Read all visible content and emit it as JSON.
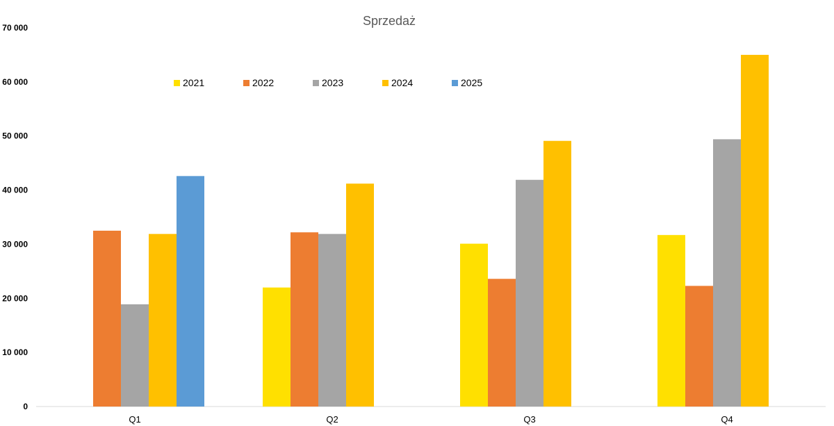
{
  "chart_data": {
    "type": "bar",
    "title": "Sprzedaż",
    "categories": [
      "Q1",
      "Q2",
      "Q3",
      "Q4"
    ],
    "series": [
      {
        "name": "2021",
        "color": "#FFE000",
        "values": [
          null,
          22000,
          30100,
          31700
        ]
      },
      {
        "name": "2022",
        "color": "#ED7D31",
        "values": [
          32500,
          32200,
          23600,
          22300
        ]
      },
      {
        "name": "2023",
        "color": "#A5A5A5",
        "values": [
          18900,
          31900,
          41900,
          49400
        ]
      },
      {
        "name": "2024",
        "color": "#FFC000",
        "values": [
          31900,
          41200,
          49100,
          65000
        ]
      },
      {
        "name": "2025",
        "color": "#5B9BD5",
        "values": [
          42600,
          null,
          null,
          null
        ]
      }
    ],
    "yticks": [
      "0",
      "10 000",
      "20 000",
      "30 000",
      "40 000",
      "50 000",
      "60 000",
      "70 000"
    ],
    "ylim": [
      0,
      70000
    ],
    "grid": false,
    "legend_position": "top-left inside plot"
  }
}
